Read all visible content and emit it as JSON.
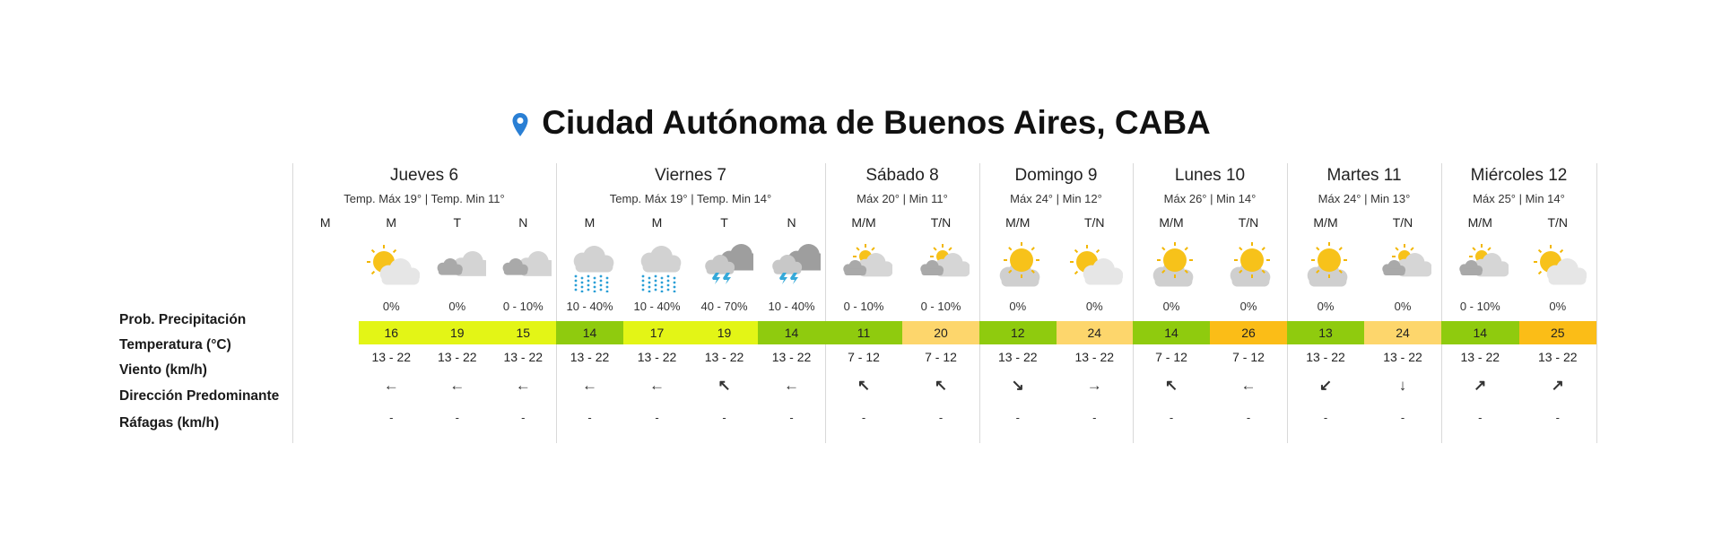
{
  "title": "Ciudad Autónoma de Buenos Aires, CABA",
  "title_icon": "location-pin-icon",
  "row_labels": {
    "precip": "Prob. Precipitación",
    "temp": "Temperatura (°C)",
    "wind": "Viento (km/h)",
    "direction": "Dirección Predominante",
    "gusts": "Ráfagas (km/h)"
  },
  "colors": {
    "yellow_green": "#e3f516",
    "green": "#8fcb0e",
    "light_orange": "#fdd66c",
    "orange": "#fbbd17",
    "accent_pin": "#2a7fd4"
  },
  "days": [
    {
      "name": "Jueves 6",
      "range": "Temp. Máx 19° | Temp. Min 11°",
      "periods": [
        {
          "label": "M"
        },
        {
          "label": "M",
          "icon": "partly-sunny",
          "prob": "0%",
          "temp": "16",
          "temp_color": "yellow_green",
          "wind": "13 - 22",
          "dir": "←",
          "gust": "-"
        },
        {
          "label": "T",
          "icon": "cloudy",
          "prob": "0%",
          "temp": "19",
          "temp_color": "yellow_green",
          "wind": "13 - 22",
          "dir": "←",
          "gust": "-"
        },
        {
          "label": "N",
          "icon": "cloudy",
          "prob": "0 - 10%",
          "temp": "15",
          "temp_color": "yellow_green",
          "wind": "13 - 22",
          "dir": "←",
          "gust": "-"
        }
      ]
    },
    {
      "name": "Viernes 7",
      "range": "Temp. Máx 19° | Temp. Min 14°",
      "periods": [
        {
          "label": "M",
          "icon": "rain",
          "prob": "10 - 40%",
          "temp": "14",
          "temp_color": "green",
          "wind": "13 - 22",
          "dir": "←",
          "gust": "-"
        },
        {
          "label": "M",
          "icon": "rain",
          "prob": "10 - 40%",
          "temp": "17",
          "temp_color": "yellow_green",
          "wind": "13 - 22",
          "dir": "←",
          "gust": "-"
        },
        {
          "label": "T",
          "icon": "storm",
          "prob": "40 - 70%",
          "temp": "19",
          "temp_color": "yellow_green",
          "wind": "13 - 22",
          "dir": "↖",
          "gust": "-"
        },
        {
          "label": "N",
          "icon": "storm",
          "prob": "10 - 40%",
          "temp": "14",
          "temp_color": "green",
          "wind": "13 - 22",
          "dir": "←",
          "gust": "-"
        }
      ]
    },
    {
      "name": "Sábado 8",
      "range": "Máx 20° | Min 11°",
      "periods": [
        {
          "label": "M/M",
          "icon": "cloudy-sun",
          "prob": "0 - 10%",
          "temp": "11",
          "temp_color": "green",
          "wind": "7 - 12",
          "dir": "↖",
          "gust": "-"
        },
        {
          "label": "T/N",
          "icon": "cloudy-sun",
          "prob": "0 - 10%",
          "temp": "20",
          "temp_color": "light_orange",
          "wind": "7 - 12",
          "dir": "↖",
          "gust": "-"
        }
      ]
    },
    {
      "name": "Domingo 9",
      "range": "Máx 24° | Min 12°",
      "periods": [
        {
          "label": "M/M",
          "icon": "sunny-cloud",
          "prob": "0%",
          "temp": "12",
          "temp_color": "green",
          "wind": "13 - 22",
          "dir": "↘",
          "gust": "-"
        },
        {
          "label": "T/N",
          "icon": "partly-sunny",
          "prob": "0%",
          "temp": "24",
          "temp_color": "light_orange",
          "wind": "13 - 22",
          "dir": "→",
          "gust": "-"
        }
      ]
    },
    {
      "name": "Lunes 10",
      "range": "Máx 26° | Min 14°",
      "periods": [
        {
          "label": "M/M",
          "icon": "sunny-cloud",
          "prob": "0%",
          "temp": "14",
          "temp_color": "green",
          "wind": "7 - 12",
          "dir": "↖",
          "gust": "-"
        },
        {
          "label": "T/N",
          "icon": "sunny-cloud",
          "prob": "0%",
          "temp": "26",
          "temp_color": "orange",
          "wind": "7 - 12",
          "dir": "←",
          "gust": "-"
        }
      ]
    },
    {
      "name": "Martes 11",
      "range": "Máx 24° | Min 13°",
      "periods": [
        {
          "label": "M/M",
          "icon": "sunny-cloud",
          "prob": "0%",
          "temp": "13",
          "temp_color": "green",
          "wind": "13 - 22",
          "dir": "↙",
          "gust": "-"
        },
        {
          "label": "T/N",
          "icon": "cloudy-sun",
          "prob": "0%",
          "temp": "24",
          "temp_color": "light_orange",
          "wind": "13 - 22",
          "dir": "↓",
          "gust": "-"
        }
      ]
    },
    {
      "name": "Miércoles 12",
      "range": "Máx 25° | Min 14°",
      "periods": [
        {
          "label": "M/M",
          "icon": "cloudy-sun",
          "prob": "0 - 10%",
          "temp": "14",
          "temp_color": "green",
          "wind": "13 - 22",
          "dir": "↗",
          "gust": "-"
        },
        {
          "label": "T/N",
          "icon": "partly-sunny",
          "prob": "0%",
          "temp": "25",
          "temp_color": "orange",
          "wind": "13 - 22",
          "dir": "↗",
          "gust": "-"
        }
      ]
    }
  ]
}
